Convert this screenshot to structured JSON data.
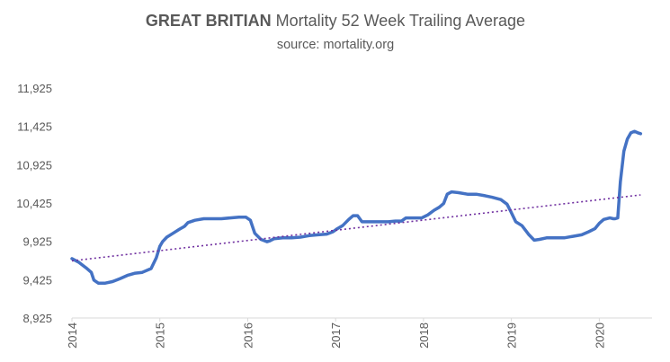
{
  "chart_data": {
    "type": "line",
    "title_bold": "GREAT BRITIAN",
    "title_rest": "Mortality 52 Week Trailing Average",
    "subtitle": "source: mortality.org",
    "xlabel": "",
    "ylabel": "",
    "ylim": [
      8925,
      11925
    ],
    "xlim": [
      2014,
      2020.6
    ],
    "yticks": [
      "11,925",
      "11,425",
      "10,925",
      "10,425",
      "9,925",
      "9,425",
      "8,925"
    ],
    "ytick_values": [
      11925,
      11425,
      10925,
      10425,
      9925,
      9425,
      8925
    ],
    "xticks": [
      "2014",
      "2015",
      "2016",
      "2017",
      "2018",
      "2019",
      "2020"
    ],
    "xtick_values": [
      2014,
      2015,
      2016,
      2017,
      2018,
      2019,
      2020
    ],
    "grid": false,
    "legend": "none",
    "series": [
      {
        "color": "#4472C4",
        "x": [
          2014.0,
          2014.08,
          2014.16,
          2014.22,
          2014.25,
          2014.3,
          2014.38,
          2014.46,
          2014.55,
          2014.63,
          2014.72,
          2014.8,
          2014.9,
          2014.96,
          2015.0,
          2015.03,
          2015.08,
          2015.15,
          2015.22,
          2015.28,
          2015.32,
          2015.4,
          2015.5,
          2015.6,
          2015.7,
          2015.8,
          2015.9,
          2015.98,
          2016.03,
          2016.08,
          2016.15,
          2016.22,
          2016.25,
          2016.3,
          2016.4,
          2016.5,
          2016.6,
          2016.7,
          2016.8,
          2016.9,
          2016.97,
          2017.02,
          2017.08,
          2017.15,
          2017.2,
          2017.25,
          2017.3,
          2017.4,
          2017.5,
          2017.6,
          2017.68,
          2017.75,
          2017.8,
          2017.9,
          2017.98,
          2018.05,
          2018.12,
          2018.18,
          2018.23,
          2018.27,
          2018.32,
          2018.4,
          2018.5,
          2018.6,
          2018.7,
          2018.78,
          2018.88,
          2018.95,
          2019.0,
          2019.05,
          2019.12,
          2019.2,
          2019.26,
          2019.32,
          2019.4,
          2019.5,
          2019.6,
          2019.7,
          2019.8,
          2019.88,
          2019.95,
          2020.0,
          2020.05,
          2020.12,
          2020.16,
          2020.18,
          2020.21,
          2020.24,
          2020.28,
          2020.32,
          2020.36,
          2020.4,
          2020.44,
          2020.47
        ],
        "y": [
          9700,
          9650,
          9580,
          9520,
          9420,
          9380,
          9380,
          9400,
          9440,
          9480,
          9510,
          9520,
          9570,
          9710,
          9860,
          9920,
          9980,
          10030,
          10080,
          10120,
          10170,
          10200,
          10220,
          10220,
          10220,
          10230,
          10240,
          10240,
          10200,
          10030,
          9950,
          9920,
          9930,
          9960,
          9970,
          9970,
          9980,
          10000,
          10010,
          10020,
          10050,
          10090,
          10130,
          10210,
          10260,
          10260,
          10180,
          10180,
          10180,
          10180,
          10190,
          10190,
          10230,
          10230,
          10230,
          10270,
          10330,
          10370,
          10420,
          10540,
          10570,
          10560,
          10540,
          10540,
          10520,
          10500,
          10470,
          10410,
          10300,
          10180,
          10130,
          10010,
          9940,
          9950,
          9970,
          9970,
          9970,
          9990,
          10010,
          10050,
          10090,
          10160,
          10210,
          10230,
          10220,
          10220,
          10230,
          10700,
          11100,
          11260,
          11340,
          11360,
          11340,
          11330
        ]
      },
      {
        "color": "#7030A0",
        "dashed": true,
        "x": [
          2014.0,
          2020.47
        ],
        "y": [
          9670,
          10530
        ]
      }
    ]
  }
}
